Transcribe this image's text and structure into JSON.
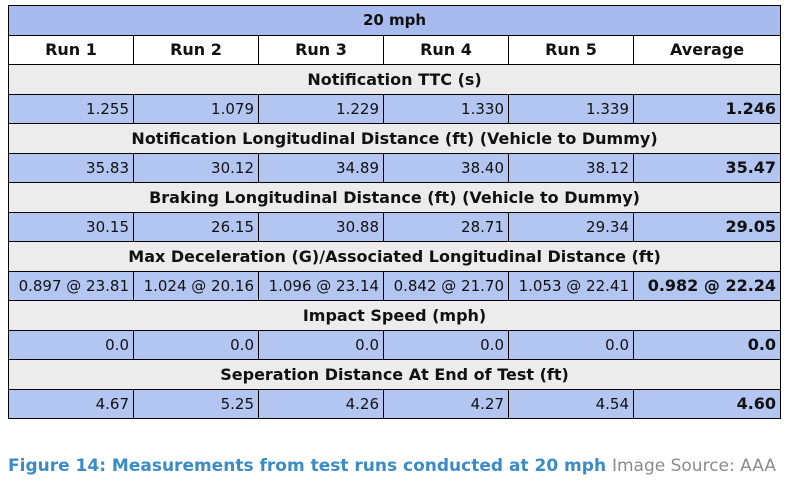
{
  "table": {
    "title": "20 mph",
    "columns": [
      "Run 1",
      "Run 2",
      "Run 3",
      "Run 4",
      "Run 5",
      "Average"
    ],
    "sections": [
      {
        "title": "Notification TTC (s)",
        "values": [
          "1.255",
          "1.079",
          "1.229",
          "1.330",
          "1.339",
          "1.246"
        ]
      },
      {
        "title": "Notification Longitudinal Distance (ft) (Vehicle to Dummy)",
        "values": [
          "35.83",
          "30.12",
          "34.89",
          "38.40",
          "38.12",
          "35.47"
        ]
      },
      {
        "title": "Braking Longitudinal Distance (ft) (Vehicle to Dummy)",
        "values": [
          "30.15",
          "26.15",
          "30.88",
          "28.71",
          "29.34",
          "29.05"
        ]
      },
      {
        "title": "Max Deceleration (G)/Associated Longitudinal Distance (ft)",
        "values": [
          "0.897 @ 23.81",
          "1.024 @ 20.16",
          "1.096 @ 23.14",
          "0.842 @ 21.70",
          "1.053 @ 22.41",
          "0.982 @ 22.24"
        ]
      },
      {
        "title": "Impact Speed (mph)",
        "values": [
          "0.0",
          "0.0",
          "0.0",
          "0.0",
          "0.0",
          "0.0"
        ]
      },
      {
        "title": "Seperation Distance At End of Test (ft)",
        "values": [
          "4.67",
          "5.25",
          "4.26",
          "4.27",
          "4.54",
          "4.60"
        ]
      }
    ]
  },
  "caption": {
    "figure": "Figure 14: Measurements from test runs conducted at 20 mph",
    "source": "Image Source: AAA"
  }
}
